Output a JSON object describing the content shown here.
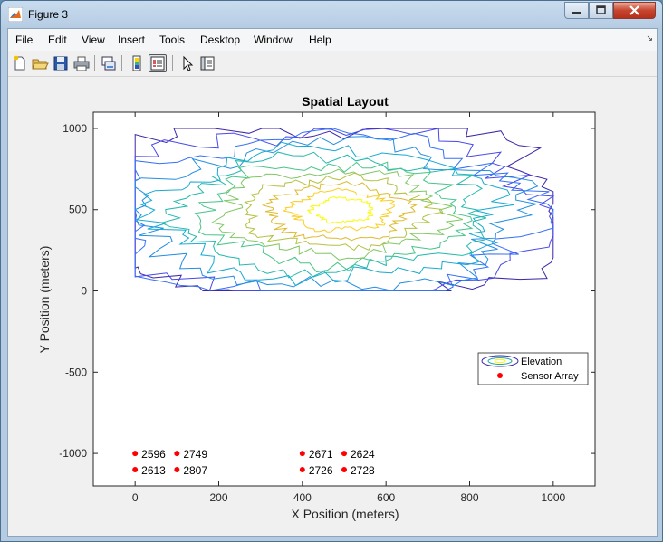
{
  "window": {
    "title": "Figure 3"
  },
  "menu": {
    "items": [
      "File",
      "Edit",
      "View",
      "Insert",
      "Tools",
      "Desktop",
      "Window",
      "Help"
    ]
  },
  "toolbar": {
    "buttons": [
      "new-figure-icon",
      "open-file-icon",
      "save-icon",
      "print-icon",
      "link-plot-icon",
      "colorbar-icon",
      "legend-icon",
      "pointer-icon",
      "property-editor-icon"
    ]
  },
  "colors": {
    "sensor": "#ff0000",
    "contour_low": "#3d26a8",
    "contour_high": "#f9fb0e"
  },
  "chart_data": {
    "type": "contour",
    "title": "Spatial Layout",
    "xlabel": "X Position (meters)",
    "ylabel": "Y Position (meters)",
    "xlim": [
      -100,
      1100
    ],
    "ylim": [
      -1200,
      1100
    ],
    "xticks": [
      0,
      200,
      400,
      600,
      800,
      1000
    ],
    "yticks": [
      -1000,
      -500,
      0,
      500,
      1000
    ],
    "legend": {
      "placement": "right",
      "entries": [
        "Elevation",
        "Sensor Array"
      ]
    },
    "contour": {
      "name": "Elevation",
      "x_range": [
        0,
        1000
      ],
      "y_range": [
        0,
        1000
      ],
      "peak": [
        500,
        500
      ],
      "levels": 12
    },
    "sensors": [
      {
        "x": 0,
        "y": -1000,
        "label": "2596"
      },
      {
        "x": 100,
        "y": -1000,
        "label": "2749"
      },
      {
        "x": 400,
        "y": -1000,
        "label": "2671"
      },
      {
        "x": 500,
        "y": -1000,
        "label": "2624"
      },
      {
        "x": 0,
        "y": -1100,
        "label": "2613"
      },
      {
        "x": 100,
        "y": -1100,
        "label": "2807"
      },
      {
        "x": 400,
        "y": -1100,
        "label": "2726"
      },
      {
        "x": 500,
        "y": -1100,
        "label": "2728"
      }
    ]
  }
}
